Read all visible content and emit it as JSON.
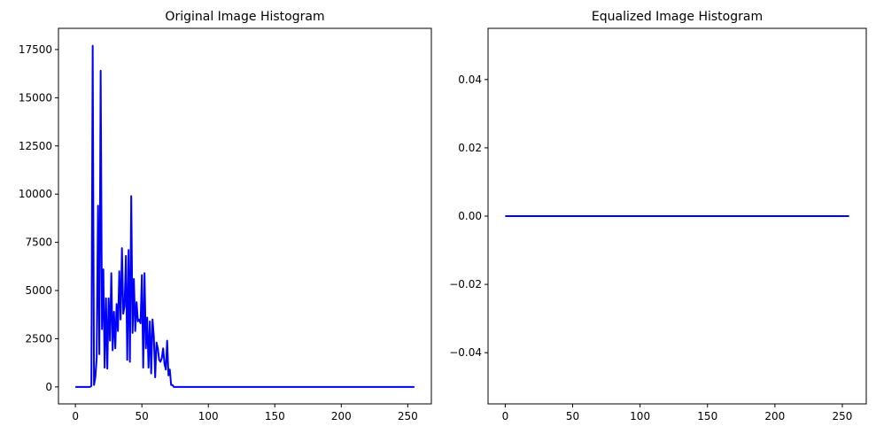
{
  "chart_data": [
    {
      "type": "line",
      "title": "Original Image Histogram",
      "xlabel": "",
      "ylabel": "",
      "xlim": [
        -12.75,
        267.75
      ],
      "ylim": [
        -880,
        18600
      ],
      "xticks": [
        0,
        50,
        100,
        150,
        200,
        250
      ],
      "yticks": [
        0,
        2500,
        5000,
        7500,
        10000,
        12500,
        15000,
        17500
      ],
      "ytick_labels": [
        "0",
        "2500",
        "5000",
        "7500",
        "10000",
        "12500",
        "15000",
        "17500"
      ],
      "grid": false,
      "series": [
        {
          "color": "#0000ff",
          "x": [
            0,
            1,
            2,
            3,
            4,
            5,
            6,
            7,
            8,
            9,
            10,
            11,
            12,
            13,
            14,
            15,
            16,
            17,
            18,
            19,
            20,
            21,
            22,
            23,
            24,
            25,
            26,
            27,
            28,
            29,
            30,
            31,
            32,
            33,
            34,
            35,
            36,
            37,
            38,
            39,
            40,
            41,
            42,
            43,
            44,
            45,
            46,
            47,
            48,
            49,
            50,
            51,
            52,
            53,
            54,
            55,
            56,
            57,
            58,
            59,
            60,
            61,
            62,
            63,
            64,
            65,
            66,
            67,
            68,
            69,
            70,
            71,
            72,
            73,
            74,
            75,
            76,
            77,
            78,
            79,
            80,
            255
          ],
          "y": [
            0,
            0,
            0,
            0,
            0,
            0,
            0,
            0,
            0,
            0,
            0,
            0,
            50,
            17700,
            100,
            500,
            1500,
            9400,
            1700,
            16400,
            3000,
            6100,
            1000,
            4600,
            950,
            4600,
            2400,
            5900,
            1900,
            3900,
            2000,
            4300,
            2900,
            6000,
            3500,
            7200,
            3800,
            4200,
            6800,
            1400,
            7100,
            1300,
            9900,
            2800,
            5600,
            2900,
            4400,
            3400,
            3500,
            3300,
            5800,
            1000,
            5900,
            2000,
            3600,
            1000,
            3400,
            700,
            3500,
            2600,
            500,
            2300,
            2000,
            1400,
            1300,
            1500,
            2000,
            1200,
            900,
            2400,
            600,
            900,
            100,
            100,
            0,
            0,
            0,
            0,
            0,
            0,
            0,
            0
          ]
        }
      ]
    },
    {
      "type": "line",
      "title": "Equalized Image Histogram",
      "xlabel": "",
      "ylabel": "",
      "xlim": [
        -12.75,
        267.75
      ],
      "ylim": [
        -0.055,
        0.055
      ],
      "xticks": [
        0,
        50,
        100,
        150,
        200,
        250
      ],
      "yticks": [
        -0.04,
        -0.02,
        0.0,
        0.02,
        0.04
      ],
      "ytick_labels": [
        "−0.04",
        "−0.02",
        "0.00",
        "0.02",
        "0.04"
      ],
      "grid": false,
      "series": [
        {
          "color": "#0000ff",
          "x": [
            0,
            255
          ],
          "y": [
            0,
            0
          ]
        }
      ]
    }
  ]
}
